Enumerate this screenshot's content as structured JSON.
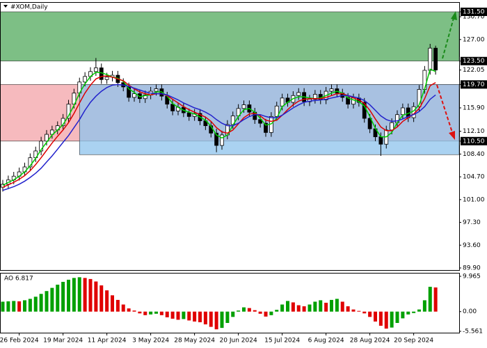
{
  "chart_data": [
    {
      "type": "candlestick",
      "title": "#XOM,Daily",
      "categories": [
        null,
        null,
        null,
        "26 Feb 2024",
        null,
        null,
        null,
        null,
        null,
        null,
        null,
        "19 Mar 2024",
        null,
        null,
        null,
        null,
        null,
        null,
        null,
        "11 Apr 2024",
        null,
        null,
        null,
        null,
        null,
        null,
        null,
        "3 May 2024",
        null,
        null,
        null,
        null,
        null,
        null,
        null,
        "28 May 2024",
        null,
        null,
        null,
        null,
        null,
        null,
        null,
        "20 Jun 2024",
        null,
        null,
        null,
        null,
        null,
        null,
        null,
        "15 Jul 2024",
        null,
        null,
        null,
        null,
        null,
        null,
        null,
        "6 Aug 2024",
        null,
        null,
        null,
        null,
        null,
        null,
        null,
        "28 Aug 2024",
        null,
        null,
        null,
        null,
        null,
        null,
        null,
        "20 Sep 2024",
        null,
        null,
        null,
        null
      ],
      "open": [
        103.0,
        103.5,
        104.2,
        104.8,
        105.5,
        106.3,
        107.8,
        108.9,
        110.5,
        111.6,
        112.3,
        113.0,
        114.2,
        116.5,
        118.3,
        120.1,
        121.0,
        121.8,
        122.4,
        120.5,
        120.9,
        121.2,
        120.0,
        119.3,
        117.6,
        118.2,
        117.4,
        118.0,
        118.6,
        119.0,
        117.8,
        116.5,
        115.4,
        116.0,
        115.1,
        114.5,
        115.0,
        113.8,
        113.0,
        111.8,
        109.8,
        111.5,
        113.2,
        114.6,
        115.8,
        116.4,
        115.2,
        114.0,
        113.4,
        111.9,
        114.5,
        116.2,
        117.5,
        116.8,
        117.9,
        118.4,
        116.9,
        117.3,
        118.1,
        117.2,
        118.6,
        119.0,
        118.3,
        117.6,
        116.5,
        117.5,
        116.8,
        114.2,
        112.5,
        111.2,
        110.0,
        112.3,
        113.5,
        114.8,
        115.9,
        114.3,
        116.1,
        118.9,
        122.0,
        125.6
      ],
      "high": [
        104.2,
        104.9,
        105.5,
        106.2,
        107.0,
        108.5,
        109.6,
        111.2,
        112.3,
        113.0,
        113.7,
        114.9,
        117.2,
        119.0,
        120.8,
        121.7,
        122.5,
        124.0,
        123.1,
        121.6,
        121.9,
        121.9,
        120.7,
        120.0,
        118.9,
        118.9,
        118.7,
        119.3,
        119.7,
        119.7,
        118.5,
        117.2,
        116.7,
        116.7,
        115.8,
        115.7,
        115.7,
        114.5,
        113.7,
        112.5,
        112.2,
        113.9,
        115.3,
        116.5,
        117.1,
        117.1,
        115.9,
        114.7,
        114.1,
        115.2,
        116.9,
        118.2,
        118.2,
        118.6,
        119.1,
        119.1,
        118.0,
        118.8,
        118.8,
        119.3,
        119.7,
        119.7,
        119.0,
        118.3,
        118.2,
        118.2,
        117.5,
        114.9,
        113.2,
        111.9,
        113.0,
        114.2,
        115.5,
        116.6,
        116.6,
        116.8,
        119.6,
        122.7,
        126.3,
        126.0
      ],
      "low": [
        102.3,
        102.8,
        103.5,
        104.1,
        104.8,
        105.6,
        107.1,
        108.2,
        109.8,
        110.9,
        111.6,
        112.3,
        113.5,
        115.8,
        117.6,
        119.4,
        120.3,
        121.1,
        119.8,
        119.8,
        120.2,
        119.3,
        118.6,
        116.9,
        116.9,
        116.7,
        116.7,
        117.3,
        117.9,
        117.1,
        115.8,
        114.7,
        114.7,
        114.4,
        113.8,
        113.8,
        113.1,
        112.3,
        111.1,
        108.7,
        109.1,
        110.8,
        112.5,
        113.9,
        115.1,
        114.5,
        113.3,
        112.7,
        111.2,
        111.2,
        113.8,
        115.5,
        116.1,
        116.1,
        117.2,
        116.2,
        116.2,
        116.6,
        116.5,
        116.5,
        117.9,
        117.6,
        116.9,
        115.8,
        115.8,
        116.1,
        113.5,
        111.8,
        110.5,
        108.1,
        109.3,
        111.6,
        112.8,
        114.1,
        113.6,
        113.6,
        115.4,
        118.2,
        121.3,
        121.3
      ],
      "close": [
        103.5,
        104.2,
        104.8,
        105.5,
        106.3,
        107.8,
        108.9,
        110.5,
        111.6,
        112.3,
        113.0,
        114.2,
        116.5,
        118.3,
        120.1,
        121.0,
        121.8,
        122.4,
        120.5,
        120.9,
        121.2,
        120.0,
        119.3,
        117.6,
        118.2,
        117.4,
        118.0,
        118.6,
        119.0,
        117.8,
        116.5,
        115.4,
        116.0,
        115.1,
        114.5,
        115.0,
        113.8,
        113.0,
        111.8,
        109.8,
        111.5,
        113.2,
        114.6,
        115.8,
        116.4,
        115.2,
        114.0,
        113.4,
        111.9,
        114.5,
        116.2,
        117.5,
        116.8,
        117.9,
        118.4,
        116.9,
        117.3,
        118.1,
        117.2,
        118.6,
        119.0,
        118.3,
        117.6,
        116.5,
        117.5,
        116.8,
        114.2,
        112.5,
        111.2,
        110.0,
        112.3,
        113.5,
        114.8,
        115.9,
        114.3,
        116.1,
        118.9,
        122.0,
        125.6,
        122.05
      ],
      "lines": [
        {
          "color": "#00cc00",
          "values": [
            103.3,
            103.8,
            104.2,
            104.8,
            105.5,
            106.5,
            107.7,
            109.1,
            110.3,
            111.5,
            112.3,
            113.2,
            114.6,
            116.3,
            118.3,
            119.8,
            121.0,
            121.7,
            121.6,
            121.3,
            120.9,
            120.7,
            120.2,
            119.0,
            118.4,
            117.7,
            117.9,
            118.0,
            118.5,
            118.5,
            117.8,
            116.6,
            116.0,
            115.5,
            115.2,
            114.9,
            114.4,
            113.9,
            112.9,
            111.5,
            111.0,
            111.5,
            113.1,
            114.5,
            115.6,
            115.8,
            115.2,
            114.2,
            113.1,
            113.3,
            114.2,
            116.1,
            116.8,
            117.4,
            117.7,
            117.7,
            117.5,
            117.4,
            117.5,
            117.9,
            118.3,
            118.6,
            118.3,
            117.5,
            117.2,
            116.9,
            116.2,
            114.5,
            112.6,
            111.2,
            111.2,
            111.9,
            113.5,
            114.7,
            115.0,
            115.4,
            116.4,
            119.0,
            122.2,
            121.8
          ]
        },
        {
          "color": "#dd0000",
          "values": [
            103.0,
            103.4,
            103.8,
            104.3,
            104.9,
            105.7,
            106.7,
            107.8,
            109.0,
            110.2,
            111.3,
            112.3,
            113.5,
            115.0,
            116.7,
            118.3,
            119.6,
            120.6,
            121.0,
            121.1,
            120.9,
            120.6,
            120.3,
            119.6,
            119.0,
            118.5,
            118.2,
            118.0,
            118.2,
            118.2,
            117.9,
            117.3,
            116.7,
            116.1,
            115.6,
            115.2,
            114.8,
            114.4,
            113.7,
            112.7,
            112.0,
            111.8,
            112.3,
            113.3,
            114.3,
            114.9,
            115.0,
            114.6,
            113.9,
            113.7,
            113.9,
            114.7,
            115.6,
            116.4,
            117.0,
            117.3,
            117.4,
            117.4,
            117.4,
            117.6,
            117.9,
            118.2,
            118.2,
            117.9,
            117.5,
            117.2,
            116.6,
            115.5,
            114.1,
            112.8,
            112.2,
            112.2,
            112.8,
            113.7,
            114.3,
            114.9,
            115.8,
            117.4,
            119.5,
            120.0
          ]
        },
        {
          "color": "#2222cc",
          "values": [
            102.5,
            102.8,
            103.1,
            103.5,
            104.0,
            104.6,
            105.3,
            106.1,
            107.1,
            108.1,
            109.2,
            110.3,
            111.4,
            112.7,
            114.0,
            115.5,
            116.8,
            117.8,
            118.6,
            119.2,
            119.6,
            119.7,
            119.6,
            119.4,
            119.1,
            118.8,
            118.5,
            118.3,
            118.2,
            118.2,
            118.0,
            117.6,
            117.2,
            116.7,
            116.3,
            115.9,
            115.6,
            115.2,
            114.7,
            114.0,
            113.4,
            113.0,
            113.0,
            113.4,
            114.0,
            114.5,
            114.8,
            114.8,
            114.5,
            114.3,
            114.3,
            114.7,
            115.3,
            115.9,
            116.4,
            116.8,
            117.0,
            117.1,
            117.2,
            117.3,
            117.5,
            117.7,
            117.9,
            117.9,
            117.7,
            117.5,
            117.1,
            116.4,
            115.5,
            114.6,
            114.0,
            113.7,
            113.8,
            114.1,
            114.5,
            114.8,
            115.3,
            116.1,
            117.3,
            118.0
          ]
        }
      ],
      "zones": [
        {
          "from": 123.5,
          "to": 131.5,
          "start": 0,
          "color": "#7dbf85"
        },
        {
          "from": 110.5,
          "to": 119.7,
          "start": 0,
          "color": "#f3a3a8"
        },
        {
          "from": 108.3,
          "to": 119.7,
          "start": 14,
          "color": "#8ec3ec"
        }
      ],
      "ylim": [
        89.56,
        133.08
      ],
      "yticks": [
        {
          "value": 131.5,
          "label": "131.50",
          "highlight": true
        },
        {
          "value": 130.7,
          "label": "130.70"
        },
        {
          "value": 127.0,
          "label": "127.00"
        },
        {
          "value": 123.5,
          "label": "123.50",
          "highlight": true
        },
        {
          "value": 122.05,
          "label": "122.05"
        },
        {
          "value": 119.7,
          "label": "119.70",
          "highlight": true
        },
        {
          "value": 115.9,
          "label": "115.90"
        },
        {
          "value": 112.1,
          "label": "112.10"
        },
        {
          "value": 110.5,
          "label": "110.50",
          "highlight": true
        },
        {
          "value": 108.4,
          "label": "108.40"
        },
        {
          "value": 104.7,
          "label": "104.70"
        },
        {
          "value": 101.0,
          "label": "101.00"
        },
        {
          "value": 97.3,
          "label": "97.30"
        },
        {
          "value": 93.6,
          "label": "93.60"
        },
        {
          "value": 89.9,
          "label": "89.90"
        }
      ]
    },
    {
      "type": "bar",
      "title": "AO 6.817",
      "up_color": "#00a000",
      "down_color": "#e00000",
      "values": [
        2.8,
        2.9,
        3.0,
        2.9,
        3.2,
        3.6,
        4.2,
        5.0,
        5.8,
        6.7,
        7.6,
        8.4,
        9.0,
        9.5,
        9.7,
        9.5,
        9.2,
        8.5,
        7.4,
        6.0,
        4.6,
        3.3,
        2.0,
        0.9,
        0.3,
        -0.5,
        -1.0,
        -0.8,
        -0.6,
        -1.0,
        -1.6,
        -2.0,
        -2.3,
        -2.1,
        -2.5,
        -2.8,
        -3.0,
        -3.6,
        -4.3,
        -5.0,
        -4.6,
        -3.2,
        -1.5,
        0.3,
        1.2,
        1.0,
        0.4,
        -0.6,
        -1.4,
        -1.0,
        0.5,
        2.0,
        3.0,
        2.6,
        1.8,
        1.5,
        2.0,
        2.8,
        3.2,
        2.5,
        3.3,
        3.6,
        2.8,
        1.5,
        0.6,
        0.2,
        -0.5,
        -1.5,
        -2.8,
        -4.0,
        -4.8,
        -4.5,
        -3.2,
        -1.9,
        -0.8,
        -0.4,
        0.6,
        3.2,
        7.0,
        6.817
      ],
      "ylim": [
        -5.95,
        10.75
      ],
      "yticks": [
        {
          "value": 9.965,
          "label": "9.965"
        },
        {
          "value": 0,
          "label": "0.00"
        },
        {
          "value": -5.561,
          "label": "-5.561"
        }
      ]
    }
  ]
}
